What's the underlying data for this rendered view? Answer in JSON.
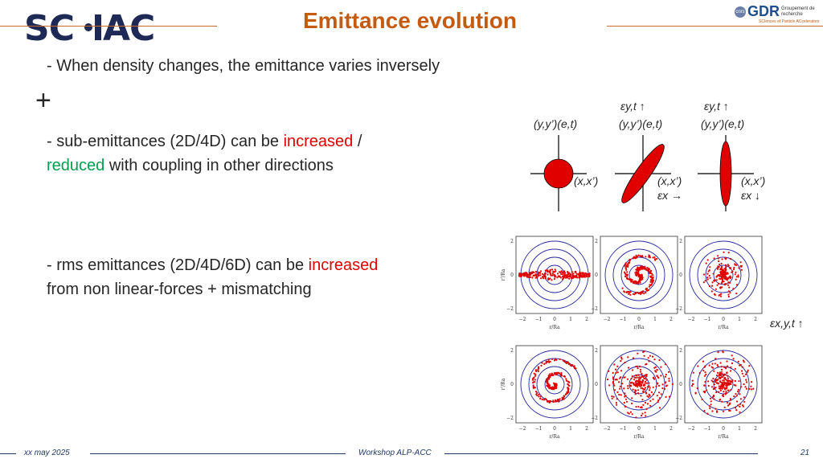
{
  "header": {
    "logo_text": "SC P C",
    "title": "Emittance evolution",
    "gdr_logo_word": "GDR",
    "gdr_logo_sub": "Groupement de recherche",
    "gdr_cnrs": "cnrs",
    "gdr_tagline": "SCIences et Particle ACcelerators"
  },
  "body": {
    "line1": "- When density changes, the emittance varies inversely",
    "plus": "+",
    "line2_a": "- sub-emittances (2D/4D) can be ",
    "line2_increased": "increased",
    "line2_b": " /",
    "line3_reduced": "reduced",
    "line3_b": " with coupling in other directions",
    "line4_a": "- rms emittances (2D/4D/6D) can be ",
    "line4_increased": "increased",
    "line5": "from non linear-forces + mismatching"
  },
  "diagram": {
    "yy_label": "(y,y’)(e,t)",
    "xx_label": "(x,x’)",
    "eps_yt": "εy,t ↑",
    "eps_x_right": "εx →",
    "eps_x_down": "εx ↓",
    "eps_xyt": "εx,y,t ↑",
    "colors": {
      "ellipse": "#e00000",
      "ring": "#2a2aa0",
      "dots": "#e00000"
    }
  },
  "plots": {
    "y_tick_labels": [
      "2",
      "0",
      "−2"
    ],
    "x_tick_labels": [
      "−2",
      "−1",
      "0",
      "1",
      "2"
    ],
    "x_axis_label": "r/Ra",
    "y_axis_label": "r'/Ra"
  },
  "footer": {
    "date": "xx may 2025",
    "event": "Workshop ALP-ACC",
    "page": "21"
  }
}
